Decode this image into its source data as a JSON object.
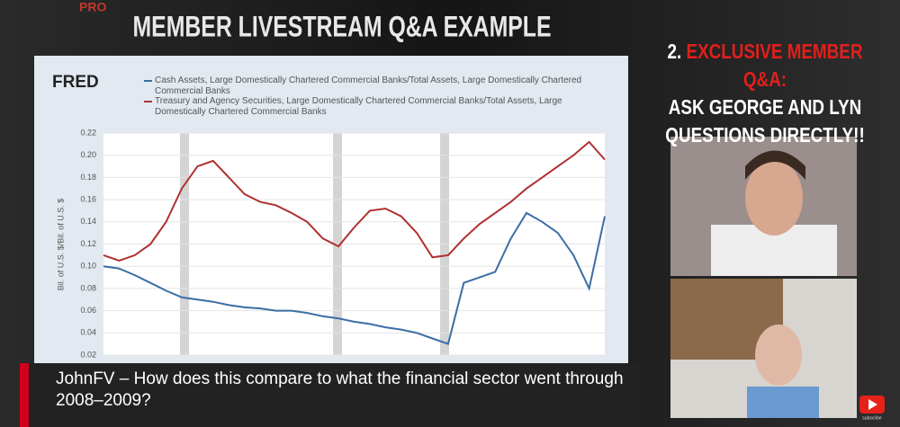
{
  "header": {
    "logo": "PRO",
    "title": "MEMBER LIVESTREAM Q&A EXAMPLE"
  },
  "chart_data": {
    "type": "line",
    "source": "FRED",
    "ylabel": "Bil. of U.S. $/Bil. of U.S. $",
    "series": [
      {
        "name": "Cash Assets, Large Domestically Chartered Commercial Banks/Total Assets, Large Domestically Chartered Commercial Banks",
        "color": "#3b6ea5",
        "values": [
          0.1,
          0.098,
          0.092,
          0.085,
          0.078,
          0.072,
          0.07,
          0.068,
          0.065,
          0.063,
          0.062,
          0.06,
          0.06,
          0.058,
          0.055,
          0.053,
          0.05,
          0.048,
          0.045,
          0.043,
          0.04,
          0.035,
          0.03,
          0.085,
          0.09,
          0.095,
          0.125,
          0.148,
          0.14,
          0.13,
          0.11,
          0.08,
          0.145
        ]
      },
      {
        "name": "Treasury and Agency Securities, Large Domestically Chartered Commercial Banks/Total Assets, Large Domestically Chartered Commercial Banks",
        "color": "#b03030",
        "values": [
          0.11,
          0.105,
          0.11,
          0.12,
          0.14,
          0.17,
          0.19,
          0.195,
          0.18,
          0.165,
          0.158,
          0.155,
          0.148,
          0.14,
          0.125,
          0.118,
          0.135,
          0.15,
          0.152,
          0.145,
          0.13,
          0.108,
          0.11,
          0.125,
          0.138,
          0.148,
          0.158,
          0.17,
          0.18,
          0.19,
          0.2,
          0.212,
          0.196
        ]
      }
    ],
    "ylim": [
      0.02,
      0.22
    ],
    "yticks": [
      0.02,
      0.04,
      0.06,
      0.08,
      {
        "value": 0.1,
        "label": "0.10"
      },
      0.12,
      0.14,
      0.16,
      0.18,
      {
        "value": 0.2,
        "label": "0.20"
      },
      0.22
    ],
    "grid": true
  },
  "side": {
    "number": "2.",
    "highlight": "EXCLUSIVE MEMBER Q&A:",
    "line2": "ASK GEORGE AND LYN",
    "line3": "QUESTIONS DIRECTLY!!",
    "badge": "subscribe"
  },
  "caption": {
    "text": "JohnFV – How does this compare to what the financial sector went through 2008–2009?"
  }
}
